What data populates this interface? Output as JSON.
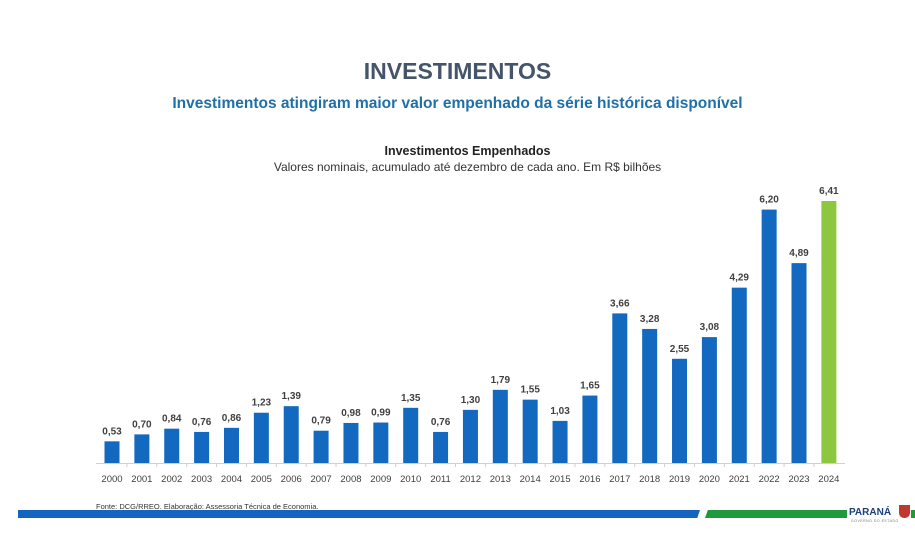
{
  "header": {
    "title": "INVESTIMENTOS",
    "subtitle": "Investimentos atingiram maior valor empenhado da série histórica disponível"
  },
  "chart_data": {
    "type": "bar",
    "title": "Investimentos Empenhados",
    "subtitle": "Valores nominais, acumulado até dezembro de cada ano. Em R$ bilhões",
    "categories": [
      "2000",
      "2001",
      "2002",
      "2003",
      "2004",
      "2005",
      "2006",
      "2007",
      "2008",
      "2009",
      "2010",
      "2011",
      "2012",
      "2013",
      "2014",
      "2015",
      "2016",
      "2017",
      "2018",
      "2019",
      "2020",
      "2021",
      "2022",
      "2023",
      "2024"
    ],
    "values": [
      0.53,
      0.7,
      0.84,
      0.76,
      0.86,
      1.23,
      1.39,
      0.79,
      0.98,
      0.99,
      1.35,
      0.76,
      1.3,
      1.79,
      1.55,
      1.03,
      1.65,
      3.66,
      3.28,
      2.55,
      3.08,
      4.29,
      6.2,
      4.89,
      6.41
    ],
    "labels": [
      "0,53",
      "0,70",
      "0,84",
      "0,76",
      "0,86",
      "1,23",
      "1,39",
      "0,79",
      "0,98",
      "0,99",
      "1,35",
      "0,76",
      "1,30",
      "1,79",
      "1,55",
      "1,03",
      "1,65",
      "3,66",
      "3,28",
      "2,55",
      "3,08",
      "4,29",
      "6,20",
      "4,89",
      "6,41"
    ],
    "colors": {
      "default": "#1368bf",
      "highlight": "#8dc63f"
    },
    "highlight_category": "2024",
    "grid": false,
    "yaxis_visible": false
  },
  "footer": {
    "source": "Fonte: DCG/RREO. Elaboração: Assessoria Técnica de Economia.",
    "logo": "PARANÁ",
    "logo_sub": "GOVERNO DO ESTADO"
  }
}
